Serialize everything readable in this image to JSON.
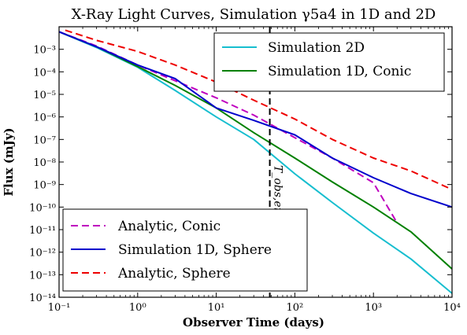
{
  "chart_data": {
    "type": "line",
    "title": "X-Ray Light Curves, Simulation γ5a4 in 1D and 2D",
    "xlabel": "Observer Time (days)",
    "ylabel": "Flux (mJy)",
    "xscale": "log",
    "yscale": "log",
    "xlim": [
      0.1,
      10000
    ],
    "ylim": [
      1e-14,
      0.01
    ],
    "x_ticks": [
      {
        "value": 0.1,
        "label": "10⁻¹"
      },
      {
        "value": 1,
        "label": "10⁰"
      },
      {
        "value": 10,
        "label": "10¹"
      },
      {
        "value": 100,
        "label": "10²"
      },
      {
        "value": 1000,
        "label": "10³"
      },
      {
        "value": 10000,
        "label": "10⁴"
      }
    ],
    "y_ticks": [
      {
        "value": 1e-14,
        "label": "10⁻¹⁴"
      },
      {
        "value": 1e-13,
        "label": "10⁻¹³"
      },
      {
        "value": 1e-12,
        "label": "10⁻¹²"
      },
      {
        "value": 1e-11,
        "label": "10⁻¹¹"
      },
      {
        "value": 1e-10,
        "label": "10⁻¹⁰"
      },
      {
        "value": 1e-09,
        "label": "10⁻⁹"
      },
      {
        "value": 1e-08,
        "label": "10⁻⁸"
      },
      {
        "value": 1e-07,
        "label": "10⁻⁷"
      },
      {
        "value": 1e-06,
        "label": "10⁻⁶"
      },
      {
        "value": 1e-05,
        "label": "10⁻⁵"
      },
      {
        "value": 0.0001,
        "label": "10⁻⁴"
      },
      {
        "value": 0.001,
        "label": "10⁻³"
      }
    ],
    "grid": false,
    "vline": {
      "x": 48,
      "label": "T_obs,enc",
      "color": "#000000",
      "dash": "dashed"
    },
    "legends": [
      {
        "placement": "upper-right",
        "entries": [
          "Simulation 2D",
          "Simulation 1D, Conic"
        ]
      },
      {
        "placement": "lower-left",
        "entries": [
          "Analytic, Conic",
          "Simulation 1D, Sphere",
          "Analytic, Sphere"
        ]
      }
    ],
    "series": [
      {
        "name": "Simulation 2D",
        "color": "#17becf",
        "dash": "solid",
        "points": [
          [
            0.1,
            0.006
          ],
          [
            0.3,
            0.0012
          ],
          [
            1,
            0.00016
          ],
          [
            3,
            1.5e-05
          ],
          [
            10,
            1e-06
          ],
          [
            30,
            1e-07
          ],
          [
            100,
            3e-09
          ],
          [
            300,
            1.6e-10
          ],
          [
            1000,
            7e-12
          ],
          [
            3000,
            5e-13
          ],
          [
            10000,
            1.5e-14
          ]
        ]
      },
      {
        "name": "Simulation 1D, Conic",
        "color": "#008000",
        "dash": "solid",
        "points": [
          [
            0.1,
            0.006
          ],
          [
            0.3,
            0.0013
          ],
          [
            1,
            0.00017
          ],
          [
            3,
            2.5e-05
          ],
          [
            10,
            2.5e-06
          ],
          [
            30,
            2e-07
          ],
          [
            100,
            1.5e-08
          ],
          [
            300,
            1.3e-09
          ],
          [
            1000,
            1e-10
          ],
          [
            3000,
            8e-12
          ],
          [
            10000,
            1.8e-13
          ]
        ]
      },
      {
        "name": "Analytic, Conic",
        "color": "#bf00bf",
        "dash": "dashed",
        "points": [
          [
            0.1,
            0.006
          ],
          [
            0.3,
            0.0014
          ],
          [
            1,
            0.0002
          ],
          [
            3,
            4e-05
          ],
          [
            10,
            7e-06
          ],
          [
            30,
            1.2e-06
          ],
          [
            100,
            1.2e-07
          ],
          [
            300,
            1.5e-08
          ],
          [
            1000,
            1.2e-09
          ],
          [
            2000,
            2e-11
          ]
        ]
      },
      {
        "name": "Simulation 1D, Sphere",
        "color": "#0000cc",
        "dash": "solid",
        "points": [
          [
            0.1,
            0.006
          ],
          [
            0.3,
            0.0013
          ],
          [
            1,
            0.0002
          ],
          [
            3,
            5e-05
          ],
          [
            10,
            2.5e-06
          ],
          [
            30,
            7e-07
          ],
          [
            100,
            1.6e-07
          ],
          [
            300,
            1.5e-08
          ],
          [
            1000,
            2e-09
          ],
          [
            3000,
            4e-10
          ],
          [
            10000,
            1e-10
          ]
        ]
      },
      {
        "name": "Analytic, Sphere",
        "color": "#ee0000",
        "dash": "dashed",
        "points": [
          [
            0.12,
            0.007
          ],
          [
            0.3,
            0.0025
          ],
          [
            1,
            0.0008
          ],
          [
            3,
            0.0002
          ],
          [
            10,
            3.5e-05
          ],
          [
            30,
            5.5e-06
          ],
          [
            100,
            8e-07
          ],
          [
            300,
            1e-07
          ],
          [
            1000,
            1.5e-08
          ],
          [
            3000,
            4e-09
          ],
          [
            10000,
            6e-10
          ]
        ]
      }
    ]
  }
}
